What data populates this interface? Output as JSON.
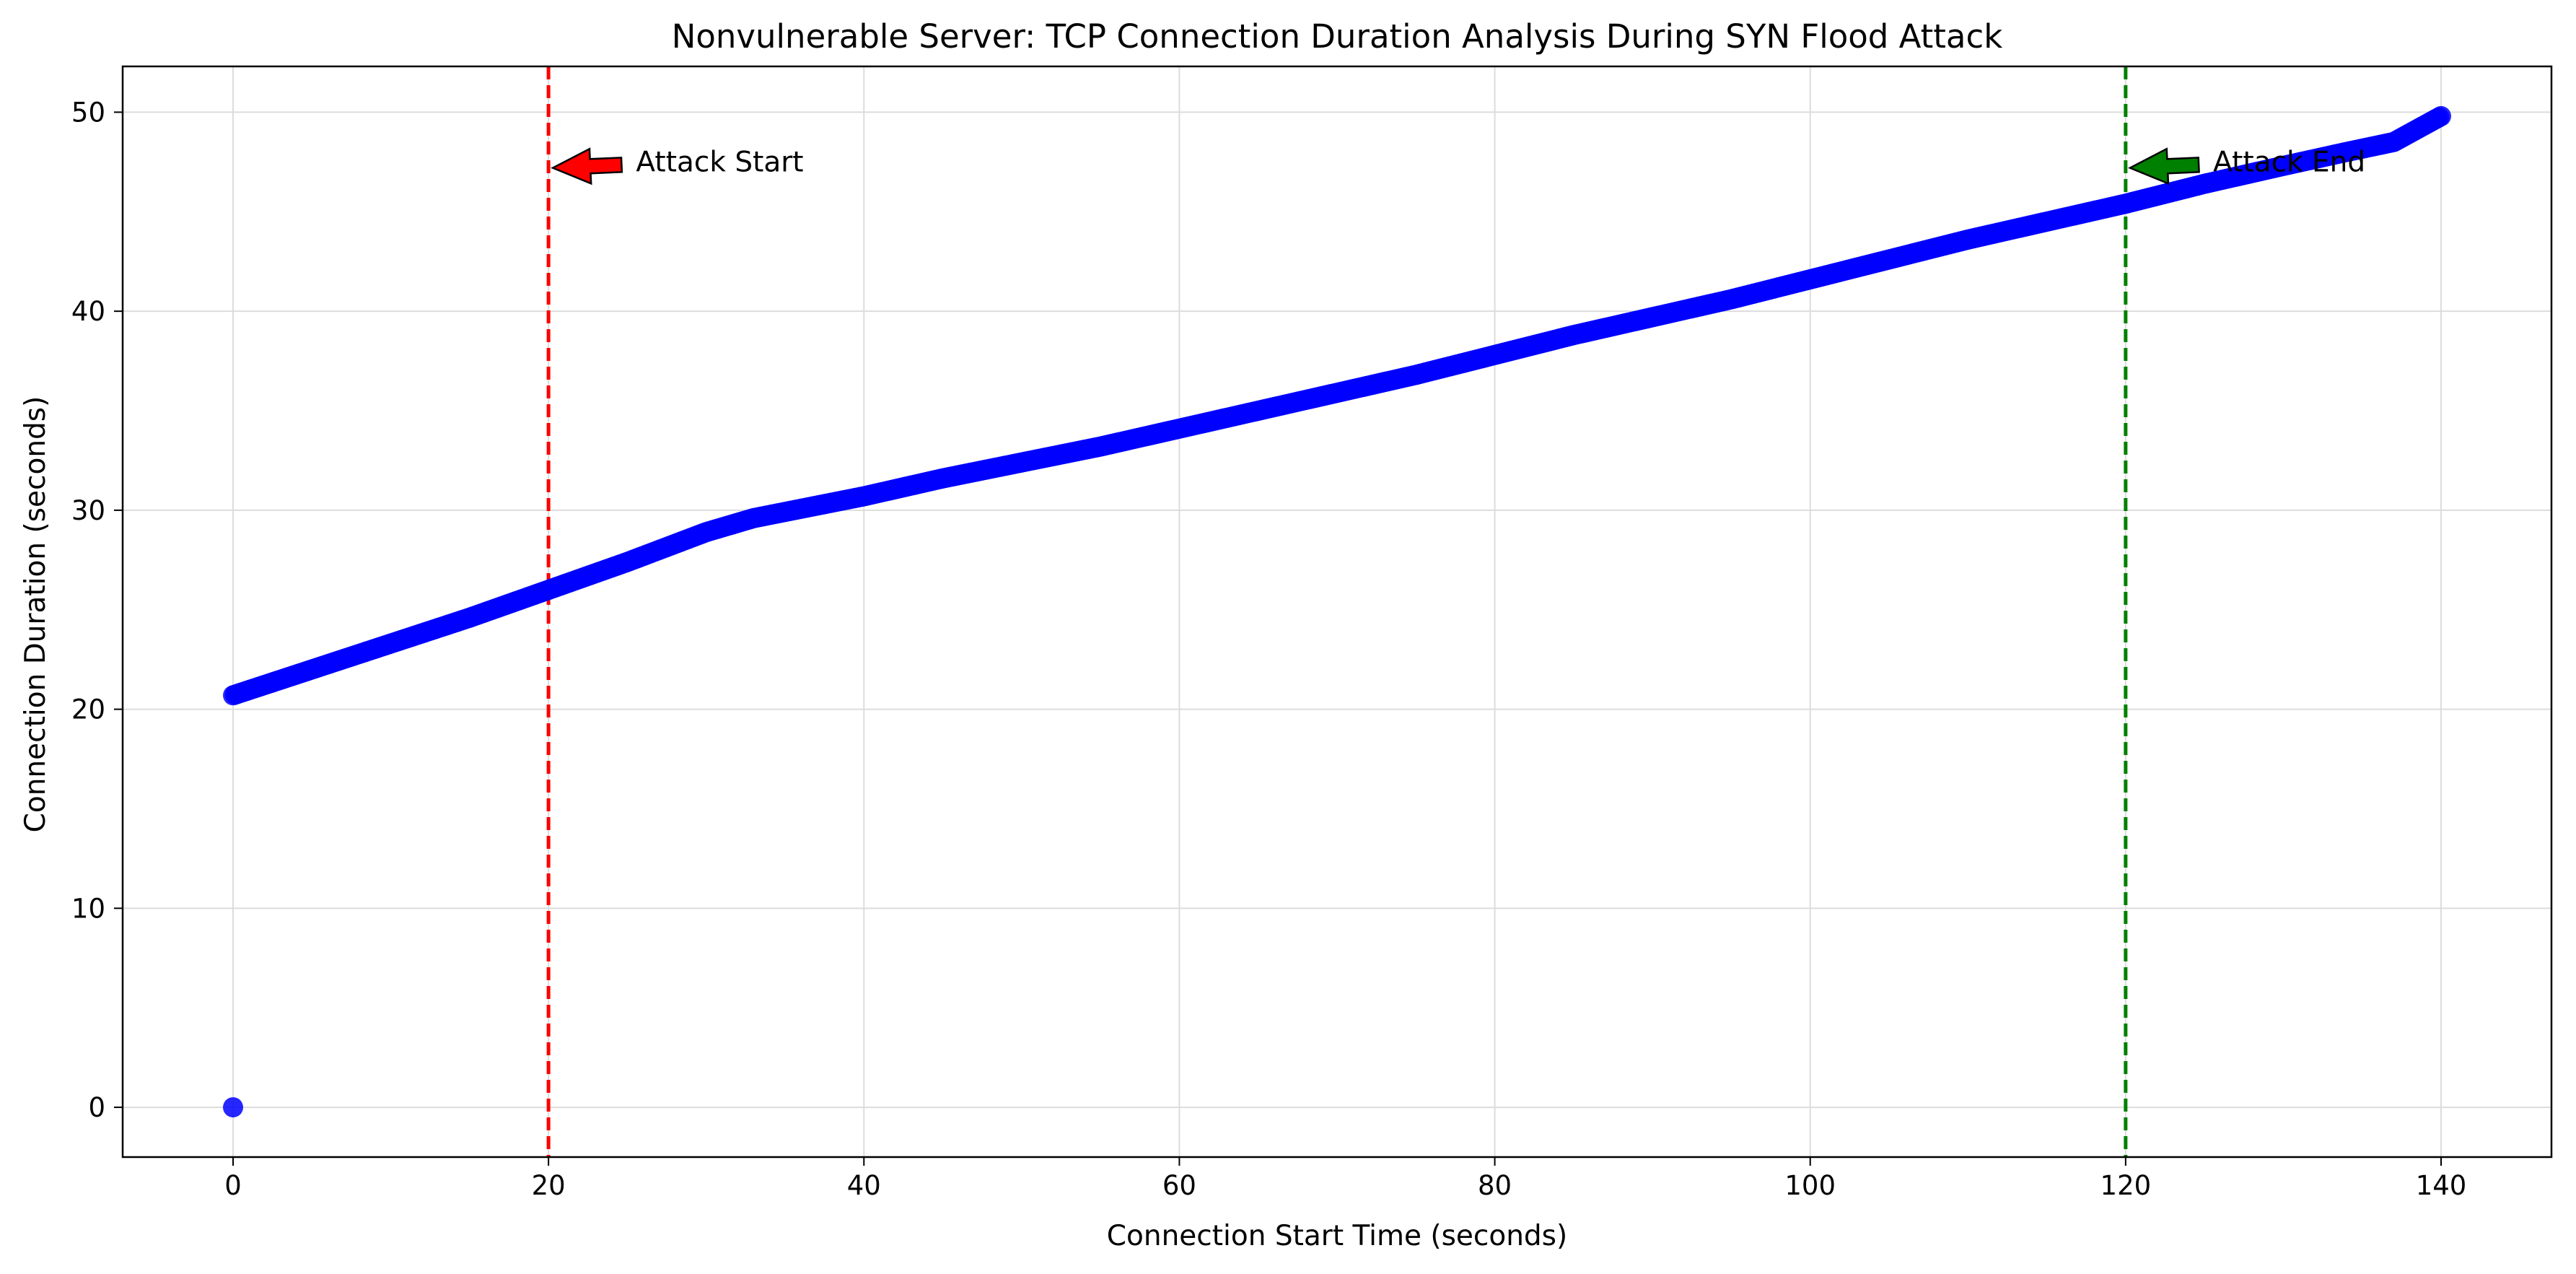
{
  "chart_data": {
    "type": "scatter",
    "title": "Nonvulnerable Server: TCP Connection Duration Analysis During SYN Flood Attack",
    "xlabel": "Connection Start Time (seconds)",
    "ylabel": "Connection Duration (seconds)",
    "xlim": [
      -7,
      147
    ],
    "ylim": [
      -2.5,
      52.3
    ],
    "xticks": [
      0,
      20,
      40,
      60,
      80,
      100,
      120,
      140
    ],
    "yticks": [
      0,
      10,
      20,
      30,
      40,
      50
    ],
    "grid": true,
    "series": [
      {
        "color": "#0000ff",
        "points": [
          [
            0,
            0
          ],
          [
            0,
            20.7
          ],
          [
            5,
            22.0
          ],
          [
            10,
            23.3
          ],
          [
            15,
            24.6
          ],
          [
            20,
            26.0
          ],
          [
            25,
            27.4
          ],
          [
            30,
            28.9
          ],
          [
            33,
            29.6
          ],
          [
            40,
            30.7
          ],
          [
            45,
            31.6
          ],
          [
            50,
            32.4
          ],
          [
            55,
            33.2
          ],
          [
            60,
            34.1
          ],
          [
            65,
            35.0
          ],
          [
            70,
            35.9
          ],
          [
            75,
            36.8
          ],
          [
            80,
            37.8
          ],
          [
            85,
            38.8
          ],
          [
            90,
            39.7
          ],
          [
            95,
            40.6
          ],
          [
            100,
            41.6
          ],
          [
            105,
            42.6
          ],
          [
            110,
            43.6
          ],
          [
            115,
            44.5
          ],
          [
            120,
            45.4
          ],
          [
            125,
            46.4
          ],
          [
            130,
            47.3
          ],
          [
            134,
            48.0
          ],
          [
            137,
            48.5
          ],
          [
            140,
            49.8
          ]
        ]
      }
    ],
    "vlines": [
      {
        "x": 20,
        "color": "#ff0000",
        "style": "dashed"
      },
      {
        "x": 120,
        "color": "#008000",
        "style": "dashed"
      }
    ],
    "annotations": [
      {
        "text": "Attack Start",
        "xy": [
          20,
          47.2
        ],
        "xytext": [
          25,
          47.5
        ],
        "arrow_color": "#ff0000"
      },
      {
        "text": "Attack End",
        "xy": [
          120,
          47.2
        ],
        "xytext": [
          125,
          47.5
        ],
        "arrow_color": "#008000"
      }
    ]
  }
}
